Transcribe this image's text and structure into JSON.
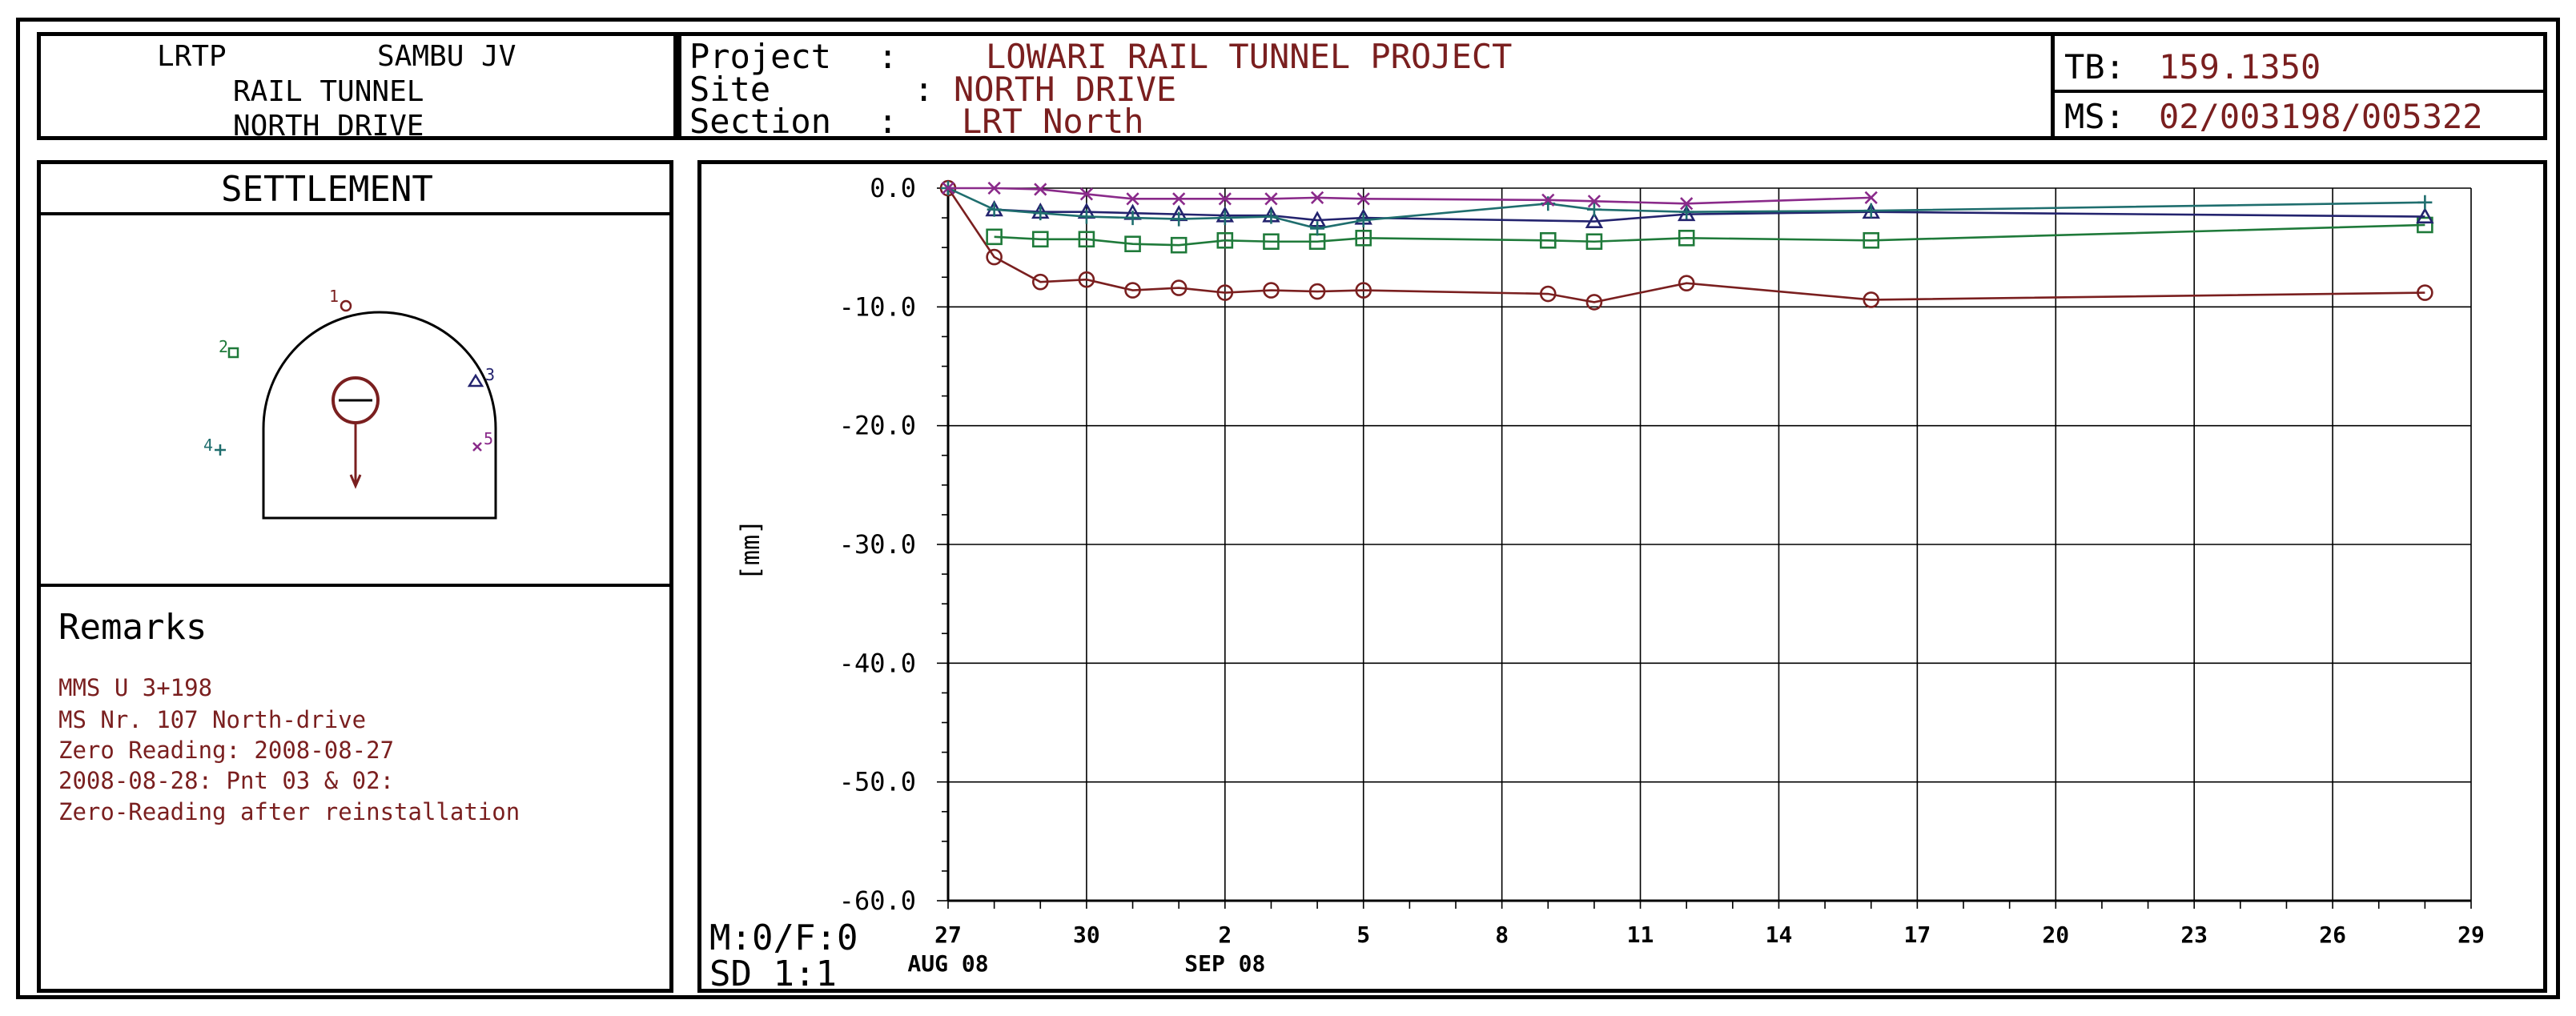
{
  "header": {
    "org_left": "LRTP",
    "org_right": "SAMBU JV",
    "org_line2": "RAIL TUNNEL",
    "org_line3": "NORTH DRIVE",
    "project_label": "Project",
    "project_value": "LOWARI RAIL TUNNEL PROJECT",
    "site_label": "Site",
    "site_value": "NORTH DRIVE",
    "section_label": "Section",
    "section_value": "LRT North",
    "sep": ":",
    "tb_label": "TB:",
    "tb_value": "159.1350",
    "ms_label": "MS:",
    "ms_value": "02/003198/005322"
  },
  "diagram": {
    "title": "SETTLEMENT",
    "points": [
      {
        "id": "1",
        "marker": "circle",
        "color": "#7a1f1f"
      },
      {
        "id": "2",
        "marker": "square",
        "color": "#1f7a3a"
      },
      {
        "id": "3",
        "marker": "triangle",
        "color": "#23236e"
      },
      {
        "id": "4",
        "marker": "plus",
        "color": "#1f6e6e"
      },
      {
        "id": "5",
        "marker": "cross",
        "color": "#8a2a8a"
      }
    ]
  },
  "remarks": {
    "title": "Remarks",
    "lines": [
      "MMS U 3+198",
      "MS Nr. 107 North-drive",
      "Zero Reading: 2008-08-27",
      "2008-08-28: Pnt 03 & 02:",
      "Zero-Reading after reinstallation"
    ]
  },
  "footer": {
    "mf": "M:0/F:0",
    "sd": "SD 1:1"
  },
  "chart_data": {
    "type": "line",
    "ylabel": "[mm]",
    "ylim": [
      -60,
      0
    ],
    "yticks": [
      0,
      -10,
      -20,
      -30,
      -40,
      -50,
      -60
    ],
    "ytick_labels": [
      "0.0",
      "-10.0",
      "-20.0",
      "-30.0",
      "-40.0",
      "-50.0",
      "-60.0"
    ],
    "xlim": [
      "2008-08-27",
      "2008-09-29"
    ],
    "xticks": [
      {
        "date": "2008-08-27",
        "label": "27"
      },
      {
        "date": "2008-08-30",
        "label": "30"
      },
      {
        "date": "2008-09-02",
        "label": "2"
      },
      {
        "date": "2008-09-05",
        "label": "5"
      },
      {
        "date": "2008-09-08",
        "label": "8"
      },
      {
        "date": "2008-09-11",
        "label": "11"
      },
      {
        "date": "2008-09-14",
        "label": "14"
      },
      {
        "date": "2008-09-17",
        "label": "17"
      },
      {
        "date": "2008-09-20",
        "label": "20"
      },
      {
        "date": "2008-09-23",
        "label": "23"
      },
      {
        "date": "2008-09-26",
        "label": "26"
      },
      {
        "date": "2008-09-29",
        "label": "29"
      }
    ],
    "month_labels": [
      {
        "date": "2008-08-27",
        "label": "AUG 08"
      },
      {
        "date": "2008-09-02",
        "label": "SEP 08"
      }
    ],
    "grid": true,
    "series": [
      {
        "marker": "circle",
        "color": "#7a1f1f",
        "x": [
          "2008-08-27",
          "2008-08-28",
          "2008-08-29",
          "2008-08-30",
          "2008-08-31",
          "2008-09-01",
          "2008-09-02",
          "2008-09-03",
          "2008-09-04",
          "2008-09-05",
          "2008-09-09",
          "2008-09-10",
          "2008-09-12",
          "2008-09-16",
          "2008-09-28"
        ],
        "y": [
          0.0,
          -5.8,
          -7.9,
          -7.7,
          -8.6,
          -8.4,
          -8.8,
          -8.6,
          -8.7,
          -8.6,
          -8.9,
          -9.6,
          -8.0,
          -9.4,
          -8.8
        ]
      },
      {
        "marker": "square",
        "color": "#1f7a3a",
        "x": [
          "2008-08-28",
          "2008-08-29",
          "2008-08-30",
          "2008-08-31",
          "2008-09-01",
          "2008-09-02",
          "2008-09-03",
          "2008-09-04",
          "2008-09-05",
          "2008-09-09",
          "2008-09-10",
          "2008-09-12",
          "2008-09-16",
          "2008-09-28"
        ],
        "y": [
          -4.1,
          -4.3,
          -4.3,
          -4.7,
          -4.8,
          -4.4,
          -4.5,
          -4.5,
          -4.2,
          -4.4,
          -4.5,
          -4.2,
          -4.4,
          -3.1
        ]
      },
      {
        "marker": "triangle",
        "color": "#23236e",
        "x": [
          "2008-08-28",
          "2008-08-29",
          "2008-08-30",
          "2008-08-31",
          "2008-09-01",
          "2008-09-02",
          "2008-09-03",
          "2008-09-04",
          "2008-09-05",
          "2008-09-10",
          "2008-09-12",
          "2008-09-16",
          "2008-09-28"
        ],
        "y": [
          -1.8,
          -2.0,
          -2.0,
          -2.1,
          -2.2,
          -2.3,
          -2.3,
          -2.7,
          -2.5,
          -2.8,
          -2.2,
          -2.0,
          -2.4
        ]
      },
      {
        "marker": "plus",
        "color": "#1f6e6e",
        "x": [
          "2008-08-27",
          "2008-08-28",
          "2008-08-29",
          "2008-08-30",
          "2008-08-31",
          "2008-09-01",
          "2008-09-02",
          "2008-09-03",
          "2008-09-04",
          "2008-09-05",
          "2008-09-09",
          "2008-09-10",
          "2008-09-12",
          "2008-09-16",
          "2008-09-28"
        ],
        "y": [
          0.0,
          -1.8,
          -2.1,
          -2.4,
          -2.5,
          -2.6,
          -2.5,
          -2.4,
          -3.4,
          -2.7,
          -1.3,
          -1.8,
          -2.0,
          -1.9,
          -1.2
        ]
      },
      {
        "marker": "cross",
        "color": "#8a2a8a",
        "x": [
          "2008-08-27",
          "2008-08-28",
          "2008-08-29",
          "2008-08-30",
          "2008-08-31",
          "2008-09-01",
          "2008-09-02",
          "2008-09-03",
          "2008-09-04",
          "2008-09-05",
          "2008-09-09",
          "2008-09-10",
          "2008-09-12",
          "2008-09-16"
        ],
        "y": [
          0.0,
          0.0,
          -0.1,
          -0.5,
          -0.9,
          -0.9,
          -0.9,
          -0.9,
          -0.8,
          -0.9,
          -1.0,
          -1.1,
          -1.3,
          -0.8
        ]
      }
    ]
  }
}
